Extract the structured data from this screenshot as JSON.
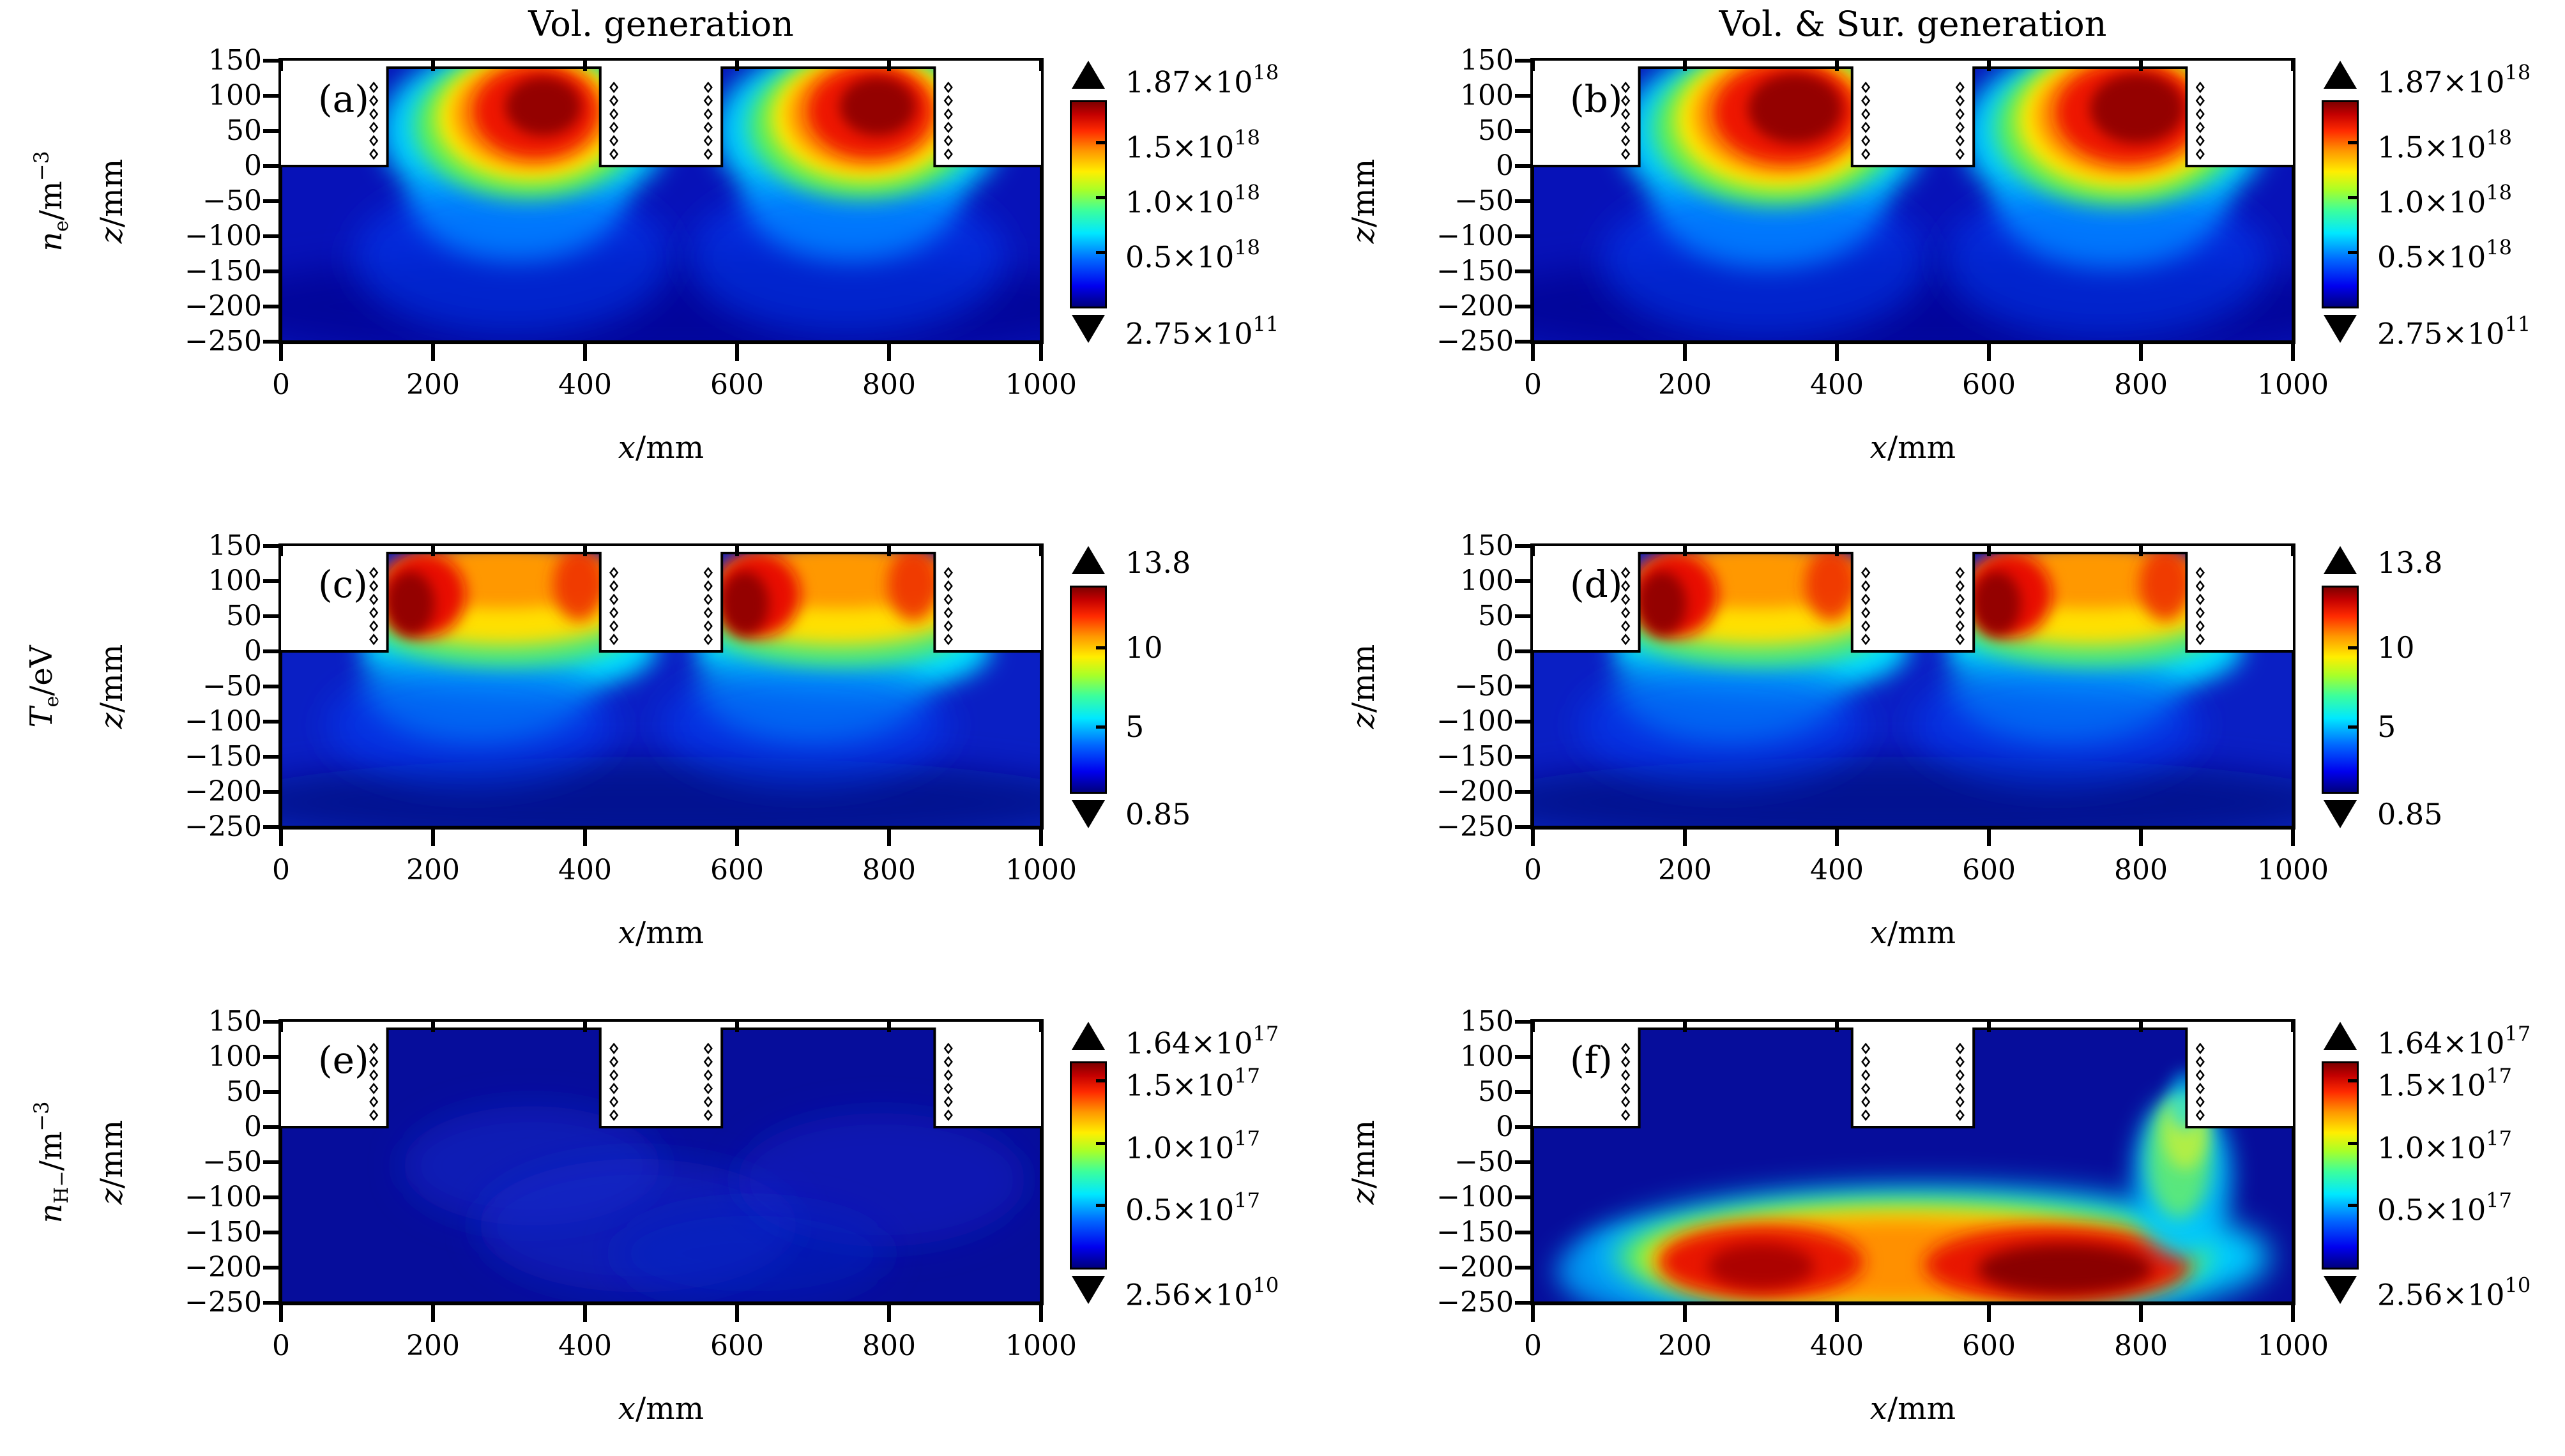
{
  "figure": {
    "columns": [
      {
        "title": "Vol. generation"
      },
      {
        "title": "Vol. & Sur. generation"
      }
    ]
  },
  "rows": [
    {
      "quantity": {
        "it": "n",
        "sub": "e",
        "rest": "/m",
        "sup": "−3"
      }
    },
    {
      "quantity": {
        "it": "T",
        "sub": "e",
        "rest": "/eV",
        "sup": ""
      }
    },
    {
      "quantity": {
        "it": "n",
        "sub": "H−",
        "rest": "/m",
        "sup": "−3"
      }
    }
  ],
  "axes": {
    "x": {
      "label": {
        "it": "x",
        "rest": "/mm"
      },
      "ticks": [
        "0",
        "200",
        "400",
        "600",
        "800",
        "1000"
      ]
    },
    "y": {
      "label": {
        "it": "z",
        "rest": "/mm"
      },
      "ticks": [
        "150",
        "100",
        "50",
        "0",
        "−50",
        "−100",
        "−150",
        "−200",
        "−250"
      ]
    }
  },
  "colorbars": [
    {
      "top": {
        "m": "1.87×10",
        "e": "18"
      },
      "ticks": [
        {
          "m": "1.5×10",
          "e": "18",
          "frac": 0.198
        },
        {
          "m": "1.0×10",
          "e": "18",
          "frac": 0.465
        },
        {
          "m": "0.5×10",
          "e": "18",
          "frac": 0.733
        }
      ],
      "bottom": {
        "m": "2.75×10",
        "e": "11"
      }
    },
    {
      "top": {
        "m": "13.8",
        "e": ""
      },
      "ticks": [
        {
          "m": "10",
          "e": "",
          "frac": 0.293
        },
        {
          "m": "5",
          "e": "",
          "frac": 0.68
        }
      ],
      "bottom": {
        "m": "0.85",
        "e": ""
      }
    },
    {
      "top": {
        "m": "1.64×10",
        "e": "17"
      },
      "ticks": [
        {
          "m": "1.5×10",
          "e": "17",
          "frac": 0.085
        },
        {
          "m": "1.0×10",
          "e": "17",
          "frac": 0.39
        },
        {
          "m": "0.5×10",
          "e": "17",
          "frac": 0.695
        }
      ],
      "bottom": {
        "m": "2.56×10",
        "e": "10"
      }
    }
  ],
  "panels": [
    {
      "id": "a",
      "letter": "(a)",
      "row": 0,
      "col": 0,
      "base": "#0712b8",
      "blobs": [
        [
          500,
          -200,
          600,
          80,
          "#04088f",
          0.7,
          26
        ],
        [
          320,
          50,
          190,
          125,
          "#00ccff",
          1,
          20
        ],
        [
          310,
          -45,
          140,
          90,
          "#00b8ff",
          0.9,
          20
        ],
        [
          305,
          -130,
          210,
          110,
          "#0040ff",
          0.5,
          26
        ],
        [
          325,
          58,
          150,
          105,
          "#58f058",
          1,
          16
        ],
        [
          328,
          68,
          124,
          90,
          "#ffe600",
          1,
          14
        ],
        [
          330,
          74,
          102,
          78,
          "#ff9000",
          1,
          12
        ],
        [
          335,
          78,
          82,
          66,
          "#ee1200",
          1,
          12
        ],
        [
          345,
          85,
          50,
          42,
          "#8f0000",
          0.95,
          10
        ],
        [
          760,
          50,
          190,
          125,
          "#00ccff",
          1,
          20
        ],
        [
          750,
          -45,
          140,
          90,
          "#00b8ff",
          0.9,
          20
        ],
        [
          745,
          -130,
          210,
          110,
          "#0040ff",
          0.5,
          26
        ],
        [
          765,
          58,
          150,
          105,
          "#58f058",
          1,
          16
        ],
        [
          768,
          68,
          124,
          90,
          "#ffe600",
          1,
          14
        ],
        [
          770,
          74,
          102,
          78,
          "#ff9000",
          1,
          12
        ],
        [
          775,
          78,
          82,
          66,
          "#ee1200",
          1,
          12
        ],
        [
          785,
          85,
          50,
          42,
          "#8f0000",
          0.95,
          10
        ]
      ]
    },
    {
      "id": "b",
      "letter": "(b)",
      "row": 0,
      "col": 1,
      "base": "#0712b8",
      "blobs": [
        [
          500,
          -200,
          600,
          80,
          "#04088f",
          0.7,
          26
        ],
        [
          315,
          45,
          200,
          130,
          "#00ccff",
          1,
          20
        ],
        [
          310,
          -50,
          150,
          95,
          "#00b8ff",
          0.9,
          20
        ],
        [
          305,
          -135,
          215,
          110,
          "#0040ff",
          0.5,
          26
        ],
        [
          320,
          55,
          162,
          112,
          "#58f058",
          1,
          16
        ],
        [
          323,
          65,
          136,
          98,
          "#ffe600",
          1,
          14
        ],
        [
          327,
          72,
          114,
          85,
          "#ff9000",
          1,
          12
        ],
        [
          333,
          76,
          95,
          72,
          "#ee1200",
          1,
          12
        ],
        [
          345,
          82,
          62,
          50,
          "#8f0000",
          0.95,
          10
        ],
        [
          765,
          45,
          200,
          130,
          "#00ccff",
          1,
          20
        ],
        [
          760,
          -50,
          150,
          95,
          "#00b8ff",
          0.9,
          20
        ],
        [
          755,
          -135,
          215,
          110,
          "#0040ff",
          0.5,
          26
        ],
        [
          770,
          55,
          162,
          112,
          "#58f058",
          1,
          16
        ],
        [
          773,
          65,
          136,
          98,
          "#ffe600",
          1,
          14
        ],
        [
          777,
          72,
          114,
          85,
          "#ff9000",
          1,
          12
        ],
        [
          783,
          76,
          95,
          72,
          "#ee1200",
          1,
          12
        ],
        [
          795,
          82,
          62,
          50,
          "#8f0000",
          0.95,
          10
        ]
      ]
    },
    {
      "id": "c",
      "letter": "(c)",
      "row": 1,
      "col": 0,
      "base": "#0a1fc4",
      "blobs": [
        [
          500,
          -215,
          580,
          65,
          "#000a85",
          0.8,
          26
        ],
        [
          300,
          5,
          195,
          70,
          "#00dcff",
          1,
          18
        ],
        [
          260,
          -50,
          150,
          80,
          "#00acf0",
          0.75,
          22
        ],
        [
          250,
          -105,
          190,
          85,
          "#0040ff",
          0.5,
          26
        ],
        [
          295,
          35,
          175,
          58,
          "#50e878",
          1,
          14
        ],
        [
          292,
          64,
          168,
          55,
          "#ffe000",
          1,
          14
        ],
        [
          292,
          106,
          158,
          45,
          "#ff9800",
          1,
          12
        ],
        [
          188,
          80,
          55,
          60,
          "#e81000",
          1,
          12
        ],
        [
          170,
          68,
          32,
          46,
          "#8f0000",
          0.95,
          10
        ],
        [
          392,
          95,
          34,
          52,
          "#ee3000",
          0.9,
          12
        ],
        [
          740,
          5,
          195,
          70,
          "#00dcff",
          1,
          18
        ],
        [
          700,
          -50,
          150,
          80,
          "#00acf0",
          0.75,
          22
        ],
        [
          690,
          -105,
          190,
          85,
          "#0040ff",
          0.5,
          26
        ],
        [
          735,
          35,
          175,
          58,
          "#50e878",
          1,
          14
        ],
        [
          732,
          64,
          168,
          55,
          "#ffe000",
          1,
          14
        ],
        [
          732,
          106,
          158,
          45,
          "#ff9800",
          1,
          12
        ],
        [
          628,
          80,
          55,
          60,
          "#e81000",
          1,
          12
        ],
        [
          610,
          68,
          32,
          46,
          "#8f0000",
          0.95,
          10
        ],
        [
          832,
          95,
          34,
          52,
          "#ee3000",
          0.9,
          12
        ]
      ]
    },
    {
      "id": "d",
      "letter": "(d)",
      "row": 1,
      "col": 1,
      "base": "#0a1fc4",
      "blobs": [
        [
          500,
          -215,
          580,
          65,
          "#000a85",
          0.8,
          26
        ],
        [
          300,
          5,
          195,
          70,
          "#00dcff",
          1,
          18
        ],
        [
          260,
          -50,
          150,
          80,
          "#00acf0",
          0.75,
          22
        ],
        [
          250,
          -105,
          190,
          85,
          "#0040ff",
          0.5,
          26
        ],
        [
          295,
          35,
          175,
          58,
          "#50e878",
          1,
          14
        ],
        [
          292,
          64,
          168,
          55,
          "#ffe000",
          1,
          14
        ],
        [
          292,
          106,
          158,
          45,
          "#ff9800",
          1,
          12
        ],
        [
          188,
          80,
          55,
          60,
          "#e81000",
          1,
          12
        ],
        [
          170,
          68,
          32,
          46,
          "#8f0000",
          0.95,
          10
        ],
        [
          392,
          95,
          34,
          52,
          "#ee3000",
          0.9,
          12
        ],
        [
          740,
          5,
          195,
          70,
          "#00dcff",
          1,
          18
        ],
        [
          700,
          -50,
          150,
          80,
          "#00acf0",
          0.75,
          22
        ],
        [
          690,
          -105,
          190,
          85,
          "#0040ff",
          0.5,
          26
        ],
        [
          735,
          35,
          175,
          58,
          "#50e878",
          1,
          14
        ],
        [
          732,
          64,
          168,
          55,
          "#ffe000",
          1,
          14
        ],
        [
          732,
          106,
          158,
          45,
          "#ff9800",
          1,
          12
        ],
        [
          628,
          80,
          55,
          60,
          "#e81000",
          1,
          12
        ],
        [
          610,
          68,
          32,
          46,
          "#8f0000",
          0.95,
          10
        ],
        [
          832,
          95,
          34,
          52,
          "#ee3000",
          0.9,
          12
        ]
      ]
    },
    {
      "id": "e",
      "letter": "(e)",
      "row": 2,
      "col": 0,
      "base": "#060d9b",
      "blobs": [
        [
          330,
          -55,
          170,
          85,
          "#1028cf",
          0.5,
          26
        ],
        [
          470,
          -140,
          210,
          95,
          "#1028cf",
          0.5,
          26
        ],
        [
          790,
          -75,
          190,
          95,
          "#1028cf",
          0.45,
          26
        ],
        [
          620,
          -180,
          180,
          70,
          "#0e24c8",
          0.45,
          26
        ]
      ]
    },
    {
      "id": "f",
      "letter": "(f)",
      "row": 2,
      "col": 1,
      "base": "#060d9b",
      "blobs": [
        [
          520,
          -185,
          450,
          100,
          "#00ccff",
          1,
          24
        ],
        [
          140,
          -205,
          110,
          60,
          "#00aaff",
          0.8,
          20
        ],
        [
          500,
          -185,
          390,
          82,
          "#58f060",
          1,
          20
        ],
        [
          490,
          -187,
          345,
          70,
          "#ffe600",
          1,
          18
        ],
        [
          480,
          -190,
          305,
          60,
          "#ff9000",
          1,
          16
        ],
        [
          300,
          -192,
          135,
          52,
          "#e81500",
          1,
          14
        ],
        [
          300,
          -198,
          70,
          32,
          "#a50000",
          0.9,
          12
        ],
        [
          690,
          -196,
          175,
          55,
          "#e81500",
          1,
          14
        ],
        [
          700,
          -202,
          115,
          36,
          "#8a0000",
          1,
          12
        ],
        [
          855,
          -70,
          65,
          115,
          "#00c8ff",
          0.9,
          18
        ],
        [
          850,
          -45,
          42,
          85,
          "#68f068",
          0.85,
          14
        ],
        [
          858,
          -5,
          30,
          55,
          "#c6f03a",
          0.8,
          12
        ],
        [
          858,
          38,
          22,
          42,
          "#00d8ff",
          0.6,
          12
        ]
      ]
    }
  ],
  "chart_data": {
    "type": "heatmap",
    "colormap": "jet",
    "domain_geometry": {
      "expansion_chamber_mm": {
        "x": [
          0,
          1000
        ],
        "z": [
          -250,
          0
        ]
      },
      "driver_chambers_mm": [
        {
          "x": [
            140,
            420
          ],
          "z": [
            0,
            140
          ]
        },
        {
          "x": [
            580,
            860
          ],
          "z": [
            0,
            140
          ]
        }
      ],
      "coil_marker_columns_x_mm": [
        122,
        438,
        562,
        878
      ],
      "coil_marker_z_mm": [
        17,
        36,
        55,
        74,
        93,
        112
      ]
    },
    "x_axis": {
      "label": "x/mm",
      "range": [
        0,
        1000
      ],
      "ticks": [
        0,
        200,
        400,
        600,
        800,
        1000
      ]
    },
    "z_axis": {
      "label": "z/mm",
      "range": [
        -250,
        150
      ],
      "ticks": [
        150,
        100,
        50,
        0,
        -50,
        -100,
        -150,
        -200,
        -250
      ]
    },
    "panels": [
      {
        "panel": "(a)",
        "column": "Vol. generation",
        "quantity": "n_e / m^-3",
        "scale_max": 1.87e+18,
        "scale_min": 275000000000.0,
        "colorbar_ticks": [
          1.5e+18,
          1e+18,
          5e+17
        ],
        "features": "Hot spots near scale max centered ~ (x=320, z=80) and (x=760, z=80) inside the two drivers; cyan plumes extend below z=0 to z~-130; expansion chamber deep blue (low density)."
      },
      {
        "panel": "(b)",
        "column": "Vol. & Sur. generation",
        "quantity": "n_e / m^-3",
        "scale_max": 1.87e+18,
        "scale_min": 275000000000.0,
        "colorbar_ticks": [
          1.5e+18,
          1e+18,
          5e+17
        ],
        "features": "Same structure as (a) with slightly broader red cores in both drivers."
      },
      {
        "panel": "(c)",
        "column": "Vol. generation",
        "quantity": "T_e / eV",
        "scale_max": 13.8,
        "scale_min": 0.85,
        "colorbar_ticks": [
          10,
          5
        ],
        "features": "Orange/red (10-13 eV) across driver tops with dark-red maxima at the driver left walls (z~40-110); temperature drops through yellow/green/cyan near z=0 and is blue (2-4 eV) in the expansion chamber."
      },
      {
        "panel": "(d)",
        "column": "Vol. & Sur. generation",
        "quantity": "T_e / eV",
        "scale_max": 13.8,
        "scale_min": 0.85,
        "colorbar_ticks": [
          10,
          5
        ],
        "features": "Nearly identical to (c)."
      },
      {
        "panel": "(e)",
        "column": "Vol. generation",
        "quantity": "n_H- / m^-3",
        "scale_max": 1.64e+17,
        "scale_min": 25600000000.0,
        "colorbar_ticks": [
          1.5e+17,
          1e+17,
          5e+16
        ],
        "features": "Almost uniformly dark blue (very low H- density), with faint slightly lighter blue diagonal bands in the expansion chamber."
      },
      {
        "panel": "(f)",
        "column": "Vol. & Sur. generation",
        "quantity": "n_H- / m^-3",
        "scale_max": 1.64e+17,
        "scale_min": 25600000000.0,
        "colorbar_ticks": [
          1.5e+17,
          1e+17,
          5e+16
        ],
        "features": "Large high-density structure at the bottom of the expansion chamber: red cores ~1.5e17 at (x~300, z~-190) and a darker-red core at (x~690, z~-200), wrapped by orange/yellow/green/cyan shells; a yellow-green plume rises along x~855 toward z=0."
      }
    ]
  }
}
